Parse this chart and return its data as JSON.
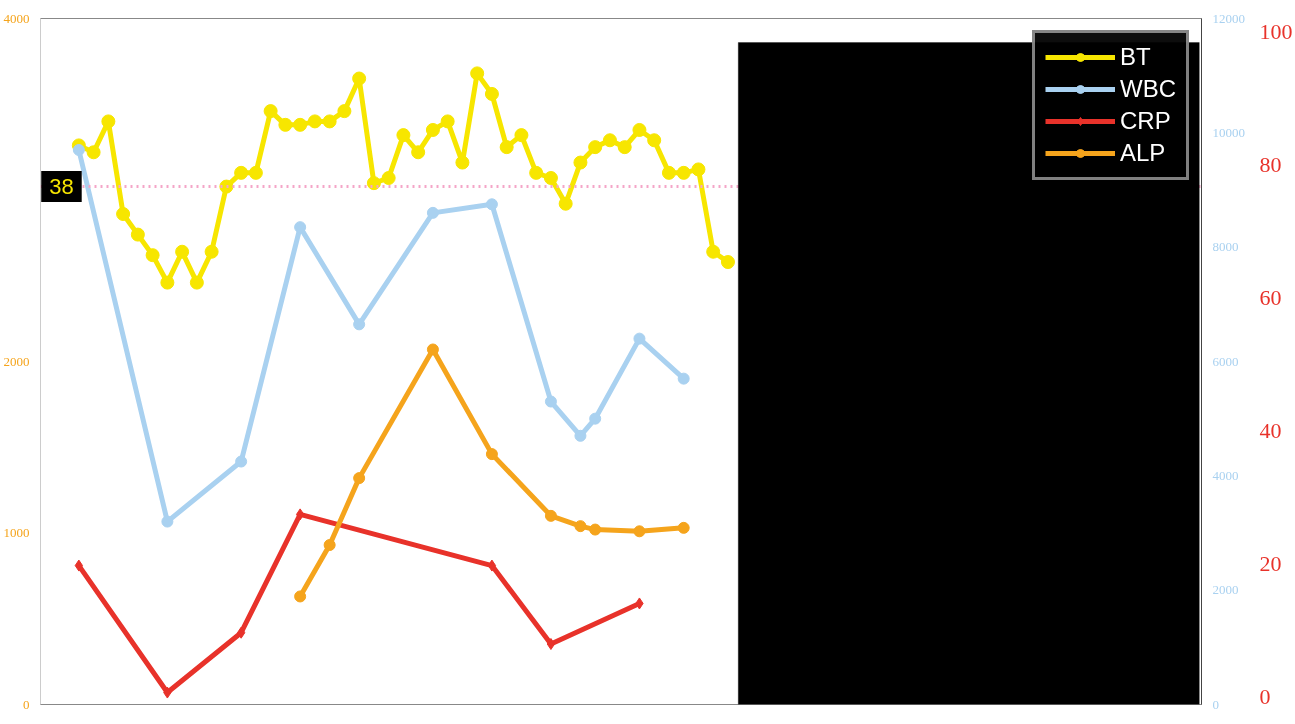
{
  "chart_data": {
    "type": "line",
    "categories": [
      null,
      null,
      null,
      null,
      null,
      null,
      null,
      null,
      null,
      null,
      null,
      null,
      null,
      null,
      null,
      null,
      null,
      null,
      null,
      null,
      null,
      null,
      null,
      null,
      null,
      null,
      null,
      null,
      null,
      null,
      null,
      null,
      null,
      null,
      null,
      null,
      null,
      null,
      null,
      null,
      null,
      null,
      null,
      null,
      null,
      null,
      null,
      null,
      null,
      null,
      null,
      null,
      null,
      null,
      null,
      null,
      null,
      null,
      null,
      null,
      null,
      null,
      null,
      null,
      null,
      null,
      null,
      null,
      null,
      null,
      null,
      null,
      null,
      null,
      null,
      null,
      null
    ],
    "series": [
      {
        "name": "BT",
        "color": "#f7e600",
        "marker": "circle",
        "values": [
          3260,
          3220,
          3400,
          2860,
          2740,
          2620,
          2460,
          2640,
          2460,
          2640,
          3020,
          3100,
          3100,
          3460,
          3380,
          3380,
          3400,
          3400,
          3460,
          3650,
          3040,
          3070,
          3320,
          3220,
          3350,
          3400,
          3160,
          3680,
          3560,
          3250,
          3320,
          3100,
          3070,
          2920,
          3160,
          3250,
          3290,
          3250,
          3350,
          3290,
          3100,
          3100,
          3120,
          2640,
          2580,
          null,
          null,
          null,
          null,
          null,
          null,
          null,
          null,
          null,
          null,
          null,
          null,
          null,
          null,
          null,
          null,
          null,
          null,
          null,
          null,
          null,
          null,
          null,
          null,
          null,
          null,
          null,
          null,
          null,
          null,
          null,
          null
        ]
      },
      {
        "name": "WBC",
        "color": "#a9d1f0",
        "axis": "y2",
        "marker": "circle",
        "values": [
          9700,
          null,
          null,
          null,
          null,
          null,
          3200,
          null,
          null,
          null,
          null,
          4250,
          null,
          null,
          null,
          8350,
          null,
          null,
          null,
          6650,
          null,
          null,
          null,
          null,
          8600,
          null,
          null,
          null,
          8750,
          null,
          null,
          null,
          5300,
          null,
          4700,
          5000,
          null,
          null,
          6400,
          null,
          null,
          5700,
          null,
          null,
          null,
          null,
          null,
          null,
          null,
          null,
          null,
          null,
          null,
          null,
          null,
          null,
          null,
          null,
          null,
          null,
          null,
          null,
          null,
          null,
          null,
          null,
          null,
          null,
          null,
          null,
          null,
          null,
          null,
          null,
          null,
          null,
          null
        ]
      },
      {
        "name": "CRP",
        "color": "#e8322a",
        "axis": "y3",
        "marker": "diamond",
        "values": [
          19.7,
          null,
          null,
          null,
          null,
          null,
          0.6,
          null,
          null,
          null,
          null,
          9.6,
          null,
          null,
          null,
          27.4,
          null,
          null,
          null,
          null,
          null,
          null,
          null,
          null,
          null,
          null,
          null,
          null,
          19.7,
          null,
          null,
          null,
          7.9,
          null,
          null,
          null,
          null,
          null,
          14,
          null,
          null,
          null,
          null,
          null,
          null,
          null,
          null,
          null,
          null,
          null,
          null,
          null,
          null,
          null,
          null,
          null,
          null,
          null,
          null,
          null,
          null,
          null,
          null,
          null,
          null,
          null,
          null,
          null,
          null,
          null,
          null,
          null,
          null,
          null,
          null,
          null,
          null
        ]
      },
      {
        "name": "ALP",
        "color": "#f5a41c",
        "marker": "circle",
        "values": [
          null,
          null,
          null,
          null,
          null,
          null,
          null,
          null,
          null,
          null,
          null,
          null,
          null,
          null,
          null,
          630,
          null,
          930,
          null,
          1320,
          null,
          null,
          null,
          null,
          2070,
          null,
          null,
          null,
          1460,
          null,
          null,
          null,
          1100,
          null,
          1040,
          1020,
          null,
          null,
          1010,
          null,
          null,
          1030,
          null,
          null,
          null,
          null,
          null,
          null,
          null,
          null,
          null,
          null,
          null,
          null,
          null,
          null,
          null,
          null,
          null,
          null,
          null,
          null,
          null,
          null,
          null,
          null,
          null,
          null,
          null,
          null,
          null,
          null,
          null,
          null,
          null,
          null,
          null
        ]
      }
    ],
    "ylim": [
      0,
      4000
    ],
    "yticks": [
      0,
      1000,
      2000,
      4000
    ],
    "y2lim": [
      0,
      12000
    ],
    "y2ticks": [
      0,
      2000,
      4000,
      6000,
      8000,
      10000,
      12000
    ],
    "y3lim": [
      -1.2,
      102
    ],
    "y3ticks": [
      0,
      20,
      40,
      60,
      80,
      100
    ],
    "ref_lines": [
      {
        "axis": "y",
        "value": 3020,
        "color": "#f4a6c8",
        "line_style": "dotted"
      }
    ],
    "annotations": [
      "38"
    ],
    "legend": "top right",
    "grid": false
  }
}
